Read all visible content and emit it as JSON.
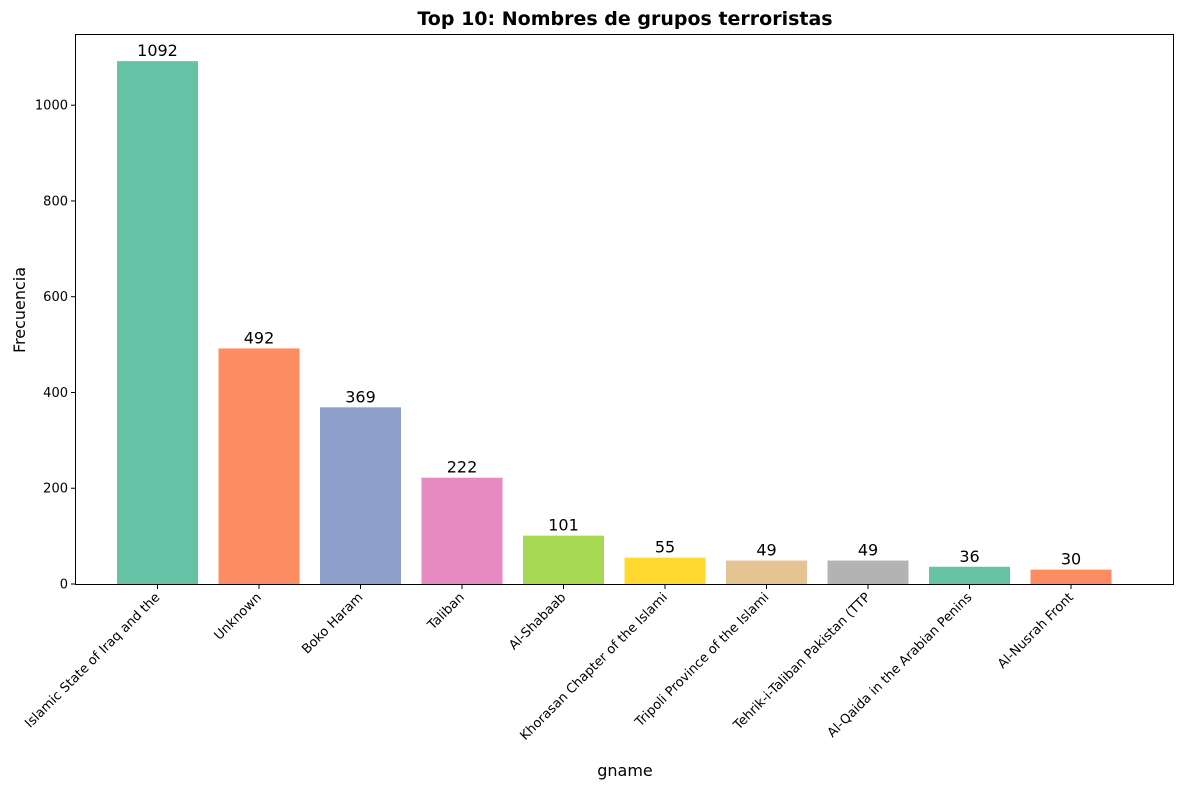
{
  "chart_data": {
    "type": "bar",
    "title": "Top 10: Nombres de grupos terroristas",
    "xlabel": "gname",
    "ylabel": "Frecuencia",
    "categories": [
      "Islamic State of Iraq and the",
      "Unknown",
      "Boko Haram",
      "Taliban",
      "Al-Shabaab",
      "Khorasan Chapter of the Islami",
      "Tripoli Province of the Islami",
      "Tehrik-i-Taliban Pakistan (TTP",
      "Al-Qaida in the Arabian Penins",
      "Al-Nusrah Front"
    ],
    "values": [
      1092,
      492,
      369,
      222,
      101,
      55,
      49,
      49,
      36,
      30
    ],
    "colors": [
      "#66c2a5",
      "#fc8d62",
      "#8da0cb",
      "#e78ac3",
      "#a6d854",
      "#ffd92f",
      "#e5c494",
      "#b3b3b3",
      "#66c2a5",
      "#fc8d62"
    ],
    "ylim": [
      0,
      1146.6
    ],
    "yticks": [
      0,
      200,
      400,
      600,
      800,
      1000
    ],
    "grid": false,
    "legend": "none"
  }
}
